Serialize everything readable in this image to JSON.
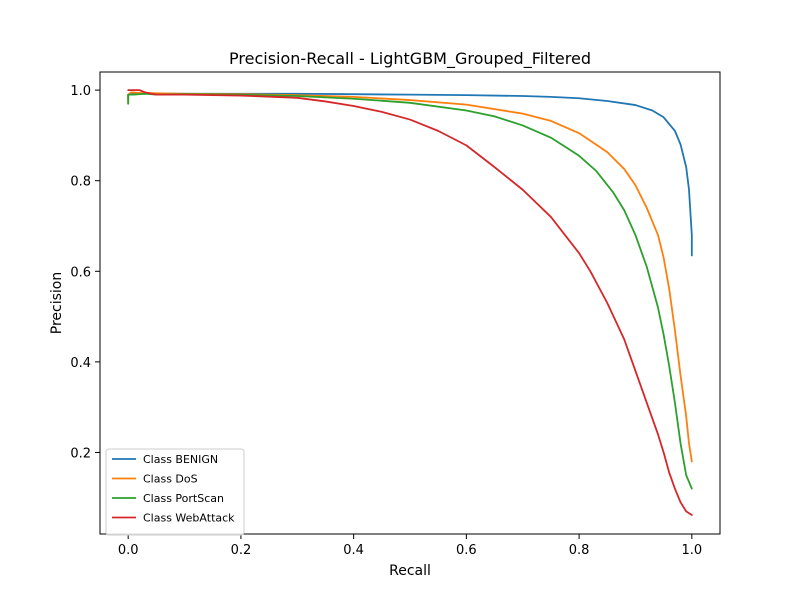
{
  "chart_data": {
    "type": "line",
    "title": "Precision-Recall - LightGBM_Grouped_Filtered",
    "xlabel": "Recall",
    "ylabel": "Precision",
    "xlim": [
      -0.05,
      1.05
    ],
    "ylim": [
      0.02,
      1.04
    ],
    "xticks": [
      0.0,
      0.2,
      0.4,
      0.6,
      0.8,
      1.0
    ],
    "yticks": [
      0.2,
      0.4,
      0.6,
      0.8,
      1.0
    ],
    "xtick_labels": [
      "0.0",
      "0.2",
      "0.4",
      "0.6",
      "0.8",
      "1.0"
    ],
    "ytick_labels": [
      "0.2",
      "0.4",
      "0.6",
      "0.8",
      "1.0"
    ],
    "grid": false,
    "legend_position": "lower-left",
    "series": [
      {
        "name": "Class BENIGN",
        "color": "#1f77b4",
        "x": [
          0.0,
          0.0,
          0.005,
          0.01,
          0.05,
          0.1,
          0.2,
          0.3,
          0.4,
          0.5,
          0.6,
          0.7,
          0.75,
          0.8,
          0.85,
          0.9,
          0.93,
          0.95,
          0.97,
          0.98,
          0.99,
          0.995,
          0.998,
          1.0,
          1.0
        ],
        "y": [
          0.98,
          0.99,
          0.992,
          0.992,
          0.992,
          0.992,
          0.992,
          0.992,
          0.991,
          0.99,
          0.989,
          0.987,
          0.985,
          0.982,
          0.976,
          0.967,
          0.955,
          0.94,
          0.91,
          0.88,
          0.83,
          0.78,
          0.72,
          0.68,
          0.635
        ]
      },
      {
        "name": "Class DoS",
        "color": "#ff7f0e",
        "x": [
          0.0,
          0.0,
          0.005,
          0.02,
          0.05,
          0.1,
          0.2,
          0.3,
          0.4,
          0.5,
          0.6,
          0.7,
          0.75,
          0.8,
          0.85,
          0.88,
          0.9,
          0.92,
          0.94,
          0.95,
          0.96,
          0.97,
          0.98,
          0.99,
          0.995,
          1.0
        ],
        "y": [
          0.97,
          0.99,
          0.995,
          0.994,
          0.993,
          0.992,
          0.991,
          0.989,
          0.985,
          0.978,
          0.968,
          0.948,
          0.932,
          0.905,
          0.863,
          0.826,
          0.79,
          0.74,
          0.68,
          0.63,
          0.56,
          0.47,
          0.37,
          0.28,
          0.22,
          0.18
        ]
      },
      {
        "name": "Class PortScan",
        "color": "#2ca02c",
        "x": [
          0.0,
          0.0,
          0.01,
          0.03,
          0.05,
          0.1,
          0.2,
          0.3,
          0.4,
          0.5,
          0.6,
          0.65,
          0.7,
          0.75,
          0.8,
          0.83,
          0.86,
          0.88,
          0.9,
          0.92,
          0.94,
          0.95,
          0.96,
          0.97,
          0.98,
          0.99,
          1.0
        ],
        "y": [
          0.97,
          0.99,
          0.99,
          0.992,
          0.99,
          0.991,
          0.99,
          0.987,
          0.981,
          0.972,
          0.955,
          0.942,
          0.922,
          0.895,
          0.855,
          0.822,
          0.775,
          0.735,
          0.68,
          0.61,
          0.52,
          0.46,
          0.39,
          0.31,
          0.22,
          0.15,
          0.12
        ]
      },
      {
        "name": "Class WebAttack",
        "color": "#d62728",
        "x": [
          0.0,
          0.0,
          0.02,
          0.03,
          0.05,
          0.1,
          0.2,
          0.3,
          0.35,
          0.4,
          0.45,
          0.5,
          0.55,
          0.6,
          0.65,
          0.7,
          0.75,
          0.8,
          0.82,
          0.85,
          0.88,
          0.9,
          0.92,
          0.94,
          0.95,
          0.96,
          0.97,
          0.98,
          0.99,
          1.0
        ],
        "y": [
          1.0,
          1.0,
          1.0,
          0.995,
          0.99,
          0.99,
          0.988,
          0.983,
          0.975,
          0.965,
          0.952,
          0.935,
          0.91,
          0.878,
          0.83,
          0.78,
          0.72,
          0.64,
          0.6,
          0.53,
          0.45,
          0.38,
          0.31,
          0.24,
          0.2,
          0.155,
          0.12,
          0.09,
          0.07,
          0.062
        ]
      }
    ]
  }
}
